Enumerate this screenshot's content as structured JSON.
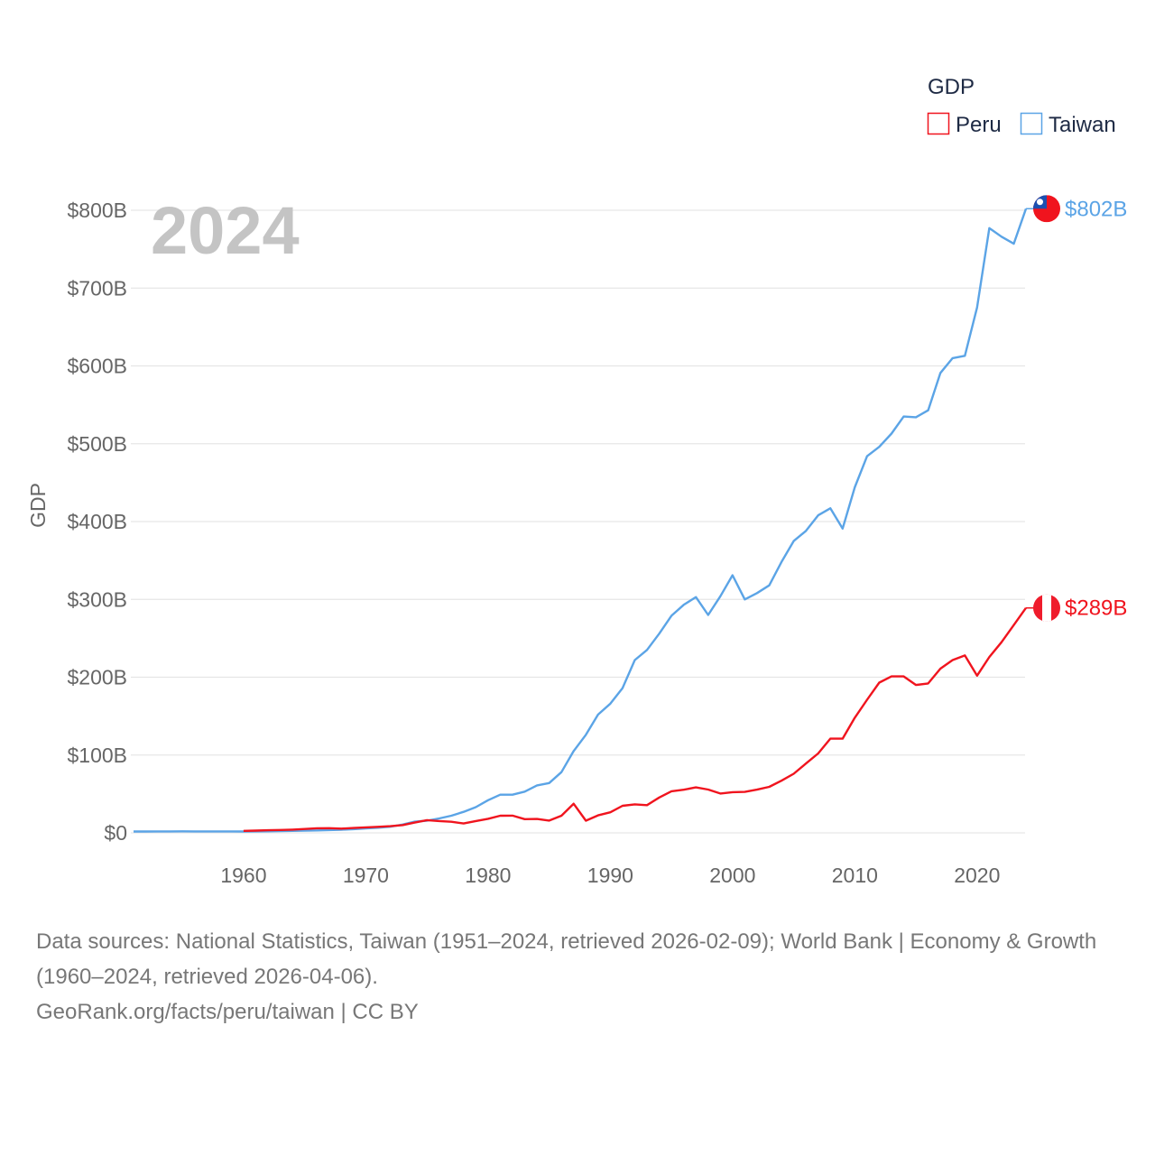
{
  "chart_data": {
    "type": "line",
    "current_year_label": "2024",
    "ylabel": "GDP",
    "xlabel": "",
    "legend": {
      "title": "GDP",
      "position": "top-right",
      "entries": [
        "Peru",
        "Taiwan"
      ]
    },
    "ylim": [
      0,
      800
    ],
    "xlim": [
      1951,
      2024
    ],
    "y_ticks": [
      0,
      100,
      200,
      300,
      400,
      500,
      600,
      700,
      800
    ],
    "y_tick_labels": [
      "$0",
      "$100B",
      "$200B",
      "$300B",
      "$400B",
      "$500B",
      "$600B",
      "$700B",
      "$800B"
    ],
    "x_ticks": [
      1960,
      1970,
      1980,
      1990,
      2000,
      2010,
      2020
    ],
    "x_tick_labels": [
      "1960",
      "1970",
      "1980",
      "1990",
      "2000",
      "2010",
      "2020"
    ],
    "grid": true,
    "series": [
      {
        "name": "Peru",
        "color": "#f0141e",
        "start_year": 1960,
        "end_label": "$289B",
        "flag": "peru-flag",
        "values": [
          2.6,
          2.9,
          3.4,
          3.7,
          4.2,
          5.0,
          5.9,
          6.0,
          5.5,
          6.3,
          7.1,
          7.8,
          8.6,
          10.0,
          13.2,
          16.3,
          15.2,
          14.3,
          12.0,
          15.2,
          18.1,
          22.0,
          22.1,
          17.6,
          17.9,
          15.8,
          22.0,
          37.5,
          15.7,
          22.5,
          26.4,
          34.8,
          36.6,
          35.6,
          45.5,
          53.5,
          55.4,
          58.4,
          55.7,
          50.5,
          52.3,
          52.6,
          55.5,
          59.1,
          67.0,
          76.0,
          89.0,
          102.0,
          121.0,
          121.0,
          148.0,
          171.0,
          193.0,
          201.0,
          201.0,
          190.0,
          192.0,
          211.0,
          222.0,
          228.0,
          202.0,
          226.0,
          245.0,
          267.0,
          289.0
        ]
      },
      {
        "name": "Taiwan",
        "color": "#5ba4e6",
        "start_year": 1951,
        "end_label": "$802B",
        "flag": "taiwan-flag",
        "values": [
          1.7,
          1.7,
          1.8,
          1.9,
          2.0,
          1.8,
          1.9,
          1.9,
          1.8,
          1.7,
          1.8,
          2.0,
          2.2,
          2.5,
          2.8,
          3.1,
          3.6,
          4.1,
          4.8,
          5.7,
          6.6,
          7.9,
          10.7,
          14.4,
          15.6,
          18.6,
          22.0,
          27.0,
          33.0,
          42.0,
          49.0,
          49.0,
          53.0,
          61.0,
          64.0,
          78.0,
          105.0,
          126.0,
          152.0,
          166.0,
          186.0,
          222.0,
          235.0,
          256.0,
          279.0,
          293.0,
          303.0,
          280.0,
          304.0,
          331.0,
          300.0,
          308.0,
          318.0,
          348.0,
          375.0,
          388.0,
          408.0,
          417.0,
          391.0,
          444.0,
          484.0,
          496.0,
          513.0,
          535.0,
          534.0,
          543.0,
          591.0,
          610.0,
          613.0,
          675.0,
          777.0,
          766.0,
          757.0,
          802.0
        ]
      }
    ]
  },
  "footer": {
    "sources": "Data sources: National Statistics, Taiwan (1951–2024, retrieved 2026-02-09); World Bank | Economy & Growth (1960–2024, retrieved 2026-04-06).",
    "link": "GeoRank.org/facts/peru/taiwan | CC BY"
  }
}
